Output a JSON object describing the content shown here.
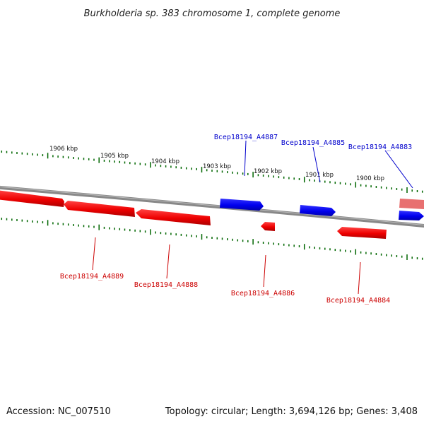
{
  "title": "Burkholderia sp. 383 chromosome 1, complete genome",
  "footer": {
    "accession": "Accession: NC_007510",
    "topology": "Topology: circular; Length: 3,694,126 bp; Genes: 3,408"
  },
  "colors": {
    "forward_strand": "#0000dd",
    "reverse_strand": "#dd0000",
    "backbone": "#888888",
    "tick": "#006600"
  },
  "kbp_labels": [
    "1906 kbp",
    "1905 kbp",
    "1904 kbp",
    "1903 kbp",
    "1902 kbp",
    "1901 kbp",
    "1900 kbp"
  ],
  "genes": [
    {
      "name": "Bcep18194_A4887",
      "strand": "forward"
    },
    {
      "name": "Bcep18194_A4885",
      "strand": "forward"
    },
    {
      "name": "Bcep18194_A4883",
      "strand": "forward"
    },
    {
      "name": "Bcep18194_A4889",
      "strand": "reverse"
    },
    {
      "name": "Bcep18194_A4888",
      "strand": "reverse"
    },
    {
      "name": "Bcep18194_A4886",
      "strand": "reverse"
    },
    {
      "name": "Bcep18194_A4884",
      "strand": "reverse"
    }
  ]
}
